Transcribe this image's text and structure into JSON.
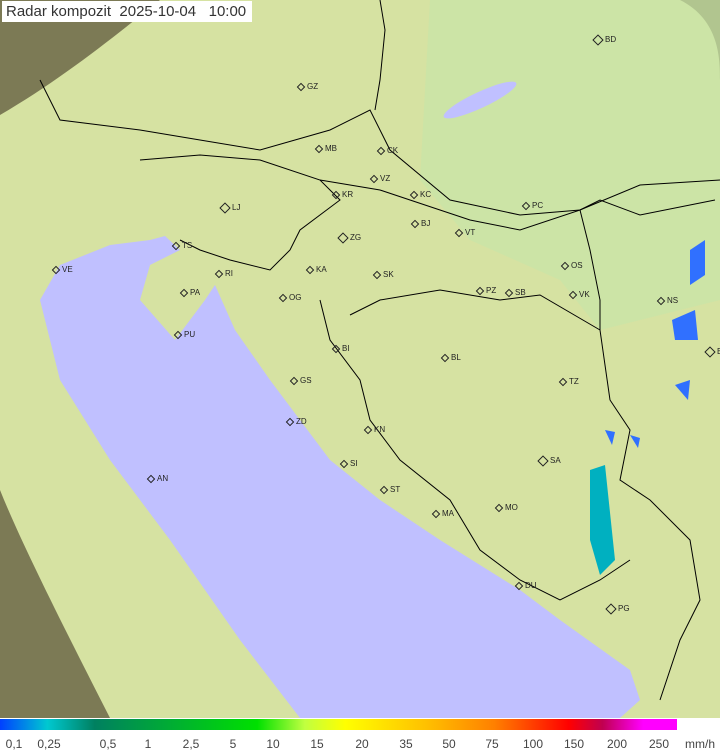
{
  "title": "Radar kompozit  2025-10-04   10:00",
  "colors": {
    "sea": "#c0c0ff",
    "land": "#d8e4a0",
    "outside": "#8a8a60",
    "rain_low": "#3070ff",
    "rain_mid": "#00b0c0"
  },
  "cities": [
    "GZ",
    "BD",
    "MB",
    "CK",
    "VZ",
    "KR",
    "KC",
    "LJ",
    "ZG",
    "BJ",
    "VT",
    "PC",
    "TS",
    "VE",
    "RI",
    "KA",
    "SK",
    "OS",
    "PA",
    "OG",
    "PZ",
    "SB",
    "VK",
    "NS",
    "PU",
    "BG",
    "BI",
    "BL",
    "GS",
    "TZ",
    "ZD",
    "KN",
    "SA",
    "SI",
    "AN",
    "ST",
    "MA",
    "MO",
    "DU",
    "PG"
  ],
  "legend": {
    "ticks": [
      "0,1",
      "0,25",
      "0,5",
      "1",
      "2,5",
      "5",
      "10",
      "15",
      "20",
      "35",
      "50",
      "75",
      "100",
      "150",
      "200",
      "250"
    ],
    "unit": "mm/h"
  }
}
